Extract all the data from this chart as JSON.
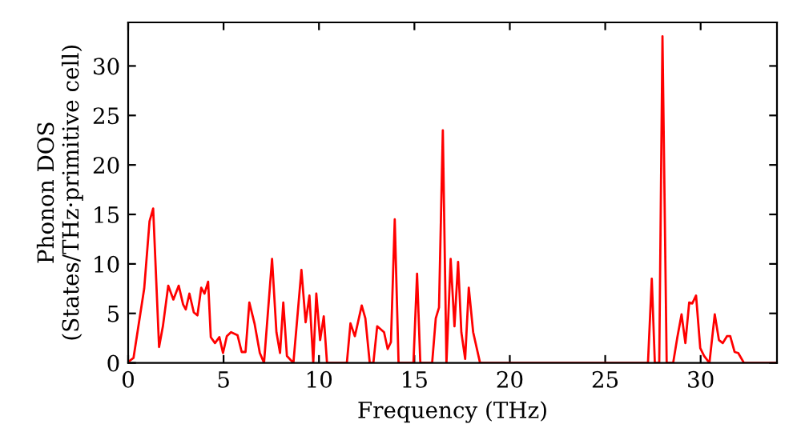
{
  "chart_data": {
    "type": "line",
    "xlabel": "Frequency (THz)",
    "ylabel": "Phonon DOS\n(States/THz·primitive cell)",
    "xlim": [
      0,
      34
    ],
    "ylim": [
      0,
      34.4
    ],
    "xticks": [
      0,
      5,
      10,
      15,
      20,
      25,
      30
    ],
    "yticks": [
      0,
      5,
      10,
      15,
      20,
      25,
      30
    ],
    "grid": false,
    "marker": "none",
    "line_style": "solid",
    "series": [
      {
        "color": "#ff0000",
        "x": [
          0,
          0.28,
          0.84,
          1.12,
          1.31,
          1.62,
          1.82,
          2.1,
          2.37,
          2.65,
          2.88,
          3.02,
          3.21,
          3.44,
          3.63,
          3.83,
          4.0,
          4.19,
          4.33,
          4.55,
          4.78,
          4.97,
          5.17,
          5.39,
          5.73,
          5.95,
          6.15,
          6.35,
          6.62,
          6.9,
          7.12,
          7.54,
          7.77,
          7.96,
          8.13,
          8.32,
          8.66,
          9.08,
          9.3,
          9.5,
          9.7,
          9.86,
          10.06,
          10.25,
          10.42,
          11.46,
          11.65,
          11.88,
          12.24,
          12.43,
          12.66,
          12.85,
          13.05,
          13.41,
          13.6,
          13.77,
          13.97,
          14.17,
          14.95,
          15.14,
          15.31,
          15.93,
          16.12,
          16.29,
          16.49,
          16.68,
          16.9,
          17.1,
          17.29,
          17.46,
          17.66,
          17.85,
          18.08,
          18.44,
          27.24,
          27.44,
          27.6,
          27.83,
          28.0,
          28.22,
          28.56,
          28.78,
          29.0,
          29.2,
          29.4,
          29.56,
          29.76,
          29.98,
          30.18,
          30.46,
          30.74,
          30.96,
          31.16,
          31.38,
          31.55,
          31.78,
          31.97,
          32.27,
          34
        ],
        "values": [
          0.1,
          0.5,
          7.5,
          14.3,
          15.6,
          1.6,
          3.7,
          7.8,
          6.4,
          7.8,
          5.9,
          5.4,
          7.0,
          5.1,
          4.8,
          7.6,
          7.0,
          8.2,
          2.6,
          2.0,
          2.6,
          1.0,
          2.7,
          3.1,
          2.8,
          1.1,
          1.1,
          6.1,
          4.0,
          1.0,
          0,
          10.5,
          3.1,
          1.0,
          6.1,
          0.7,
          0,
          9.4,
          4.1,
          6.8,
          0,
          7.0,
          2.3,
          4.7,
          0,
          0,
          4.0,
          2.7,
          5.8,
          4.5,
          0,
          0,
          3.7,
          3.1,
          1.4,
          2.1,
          14.5,
          0,
          0,
          9.0,
          0,
          0,
          4.5,
          5.6,
          23.5,
          0,
          10.5,
          3.7,
          10.2,
          3.1,
          0.4,
          7.6,
          3.1,
          0,
          0,
          8.5,
          0,
          0,
          33.0,
          0,
          0,
          2.6,
          4.9,
          2.0,
          6.1,
          6.0,
          6.8,
          1.5,
          0.7,
          0,
          4.9,
          2.3,
          2.0,
          2.7,
          2.7,
          1.1,
          1.0,
          0,
          0
        ]
      }
    ]
  }
}
